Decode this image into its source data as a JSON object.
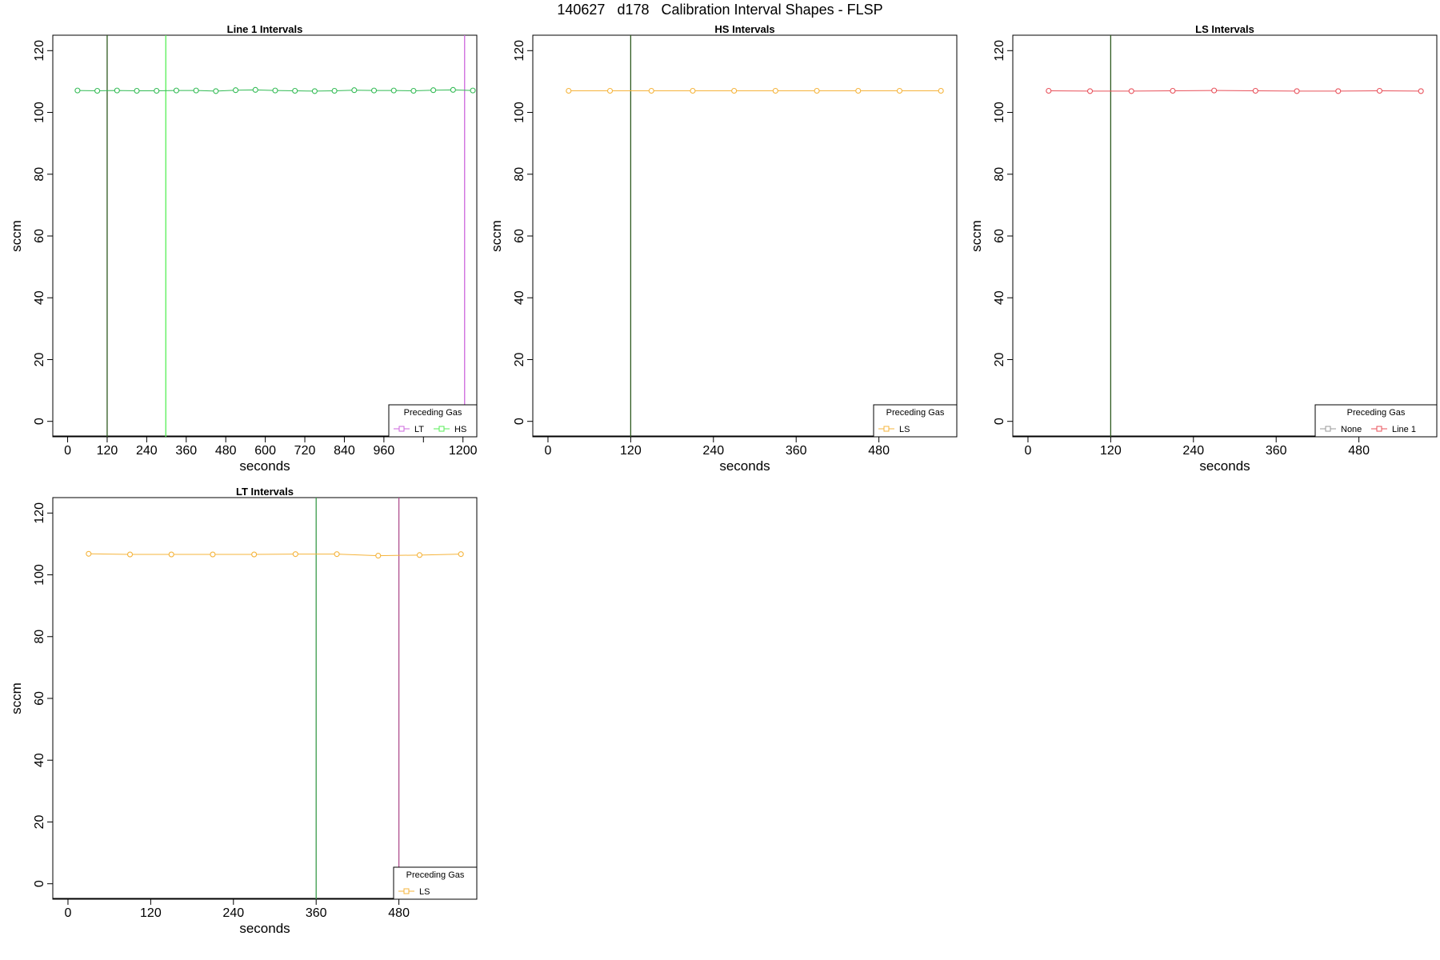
{
  "page": {
    "title": "140627   d178   Calibration Interval Shapes - FLSP"
  },
  "colors": {
    "gray": "#999999",
    "purple": "#cc66dd",
    "green": "#33bb55",
    "bright_green": "#55ee55",
    "orange": "#f5b43c",
    "red": "#e8505a",
    "dark_green": "#2e5a1f",
    "mid_green": "#3a9a4a",
    "magenta": "#b0508f"
  },
  "chart_data": [
    {
      "id": "line1",
      "type": "line",
      "title": "Line 1 Intervals",
      "xlabel": "seconds",
      "ylabel": "sccm",
      "xlim": [
        -45,
        1242
      ],
      "ylim": [
        -5,
        125
      ],
      "x_ticks": [
        0,
        120,
        240,
        360,
        480,
        600,
        720,
        840,
        960,
        1200
      ],
      "x_minor_ticks": [
        1080
      ],
      "y_ticks": [
        0,
        20,
        40,
        60,
        80,
        100,
        120
      ],
      "vlines": [
        {
          "x": 120,
          "color": "#2e5a1f"
        },
        {
          "x": 298,
          "color": "#55ee55"
        },
        {
          "x": 1205,
          "color": "#cc66dd"
        }
      ],
      "series": [
        {
          "color": "#33bb55",
          "x": [
            30,
            90,
            150,
            210,
            270,
            330,
            390,
            450,
            510,
            570,
            630,
            690,
            750,
            810,
            870,
            930,
            990,
            1050,
            1110,
            1170,
            1230
          ],
          "y": [
            107.1,
            107.0,
            107.1,
            107.0,
            107.0,
            107.1,
            107.1,
            106.9,
            107.2,
            107.3,
            107.1,
            107.0,
            106.9,
            107.0,
            107.2,
            107.1,
            107.1,
            107.0,
            107.2,
            107.3,
            107.1
          ]
        }
      ],
      "legend": {
        "title": "Preceding Gas",
        "position": "bottom-right",
        "entries": [
          {
            "label": "LT",
            "color": "#cc66dd"
          },
          {
            "label": "HS",
            "color": "#55ee55"
          }
        ]
      }
    },
    {
      "id": "hs",
      "type": "line",
      "title": "HS Intervals",
      "xlabel": "seconds",
      "ylabel": "sccm",
      "xlim": [
        -22,
        593
      ],
      "ylim": [
        -5,
        125
      ],
      "x_ticks": [
        0,
        120,
        240,
        360,
        480
      ],
      "x_minor_ticks": [],
      "y_ticks": [
        0,
        20,
        40,
        60,
        80,
        100,
        120
      ],
      "vlines": [
        {
          "x": 120,
          "color": "#2e5a1f"
        }
      ],
      "series": [
        {
          "color": "#f5b43c",
          "x": [
            30,
            90,
            150,
            210,
            270,
            330,
            390,
            450,
            510,
            570
          ],
          "y": [
            107.0,
            107.0,
            107.0,
            107.0,
            107.0,
            107.0,
            107.0,
            107.0,
            107.0,
            107.0
          ]
        }
      ],
      "legend": {
        "title": "Preceding Gas",
        "position": "bottom-right",
        "entries": [
          {
            "label": "LS",
            "color": "#f5b43c"
          }
        ]
      }
    },
    {
      "id": "ls",
      "type": "line",
      "title": "LS Intervals",
      "xlabel": "seconds",
      "ylabel": "sccm",
      "xlim": [
        -22,
        593
      ],
      "ylim": [
        -5,
        125
      ],
      "x_ticks": [
        0,
        120,
        240,
        360,
        480
      ],
      "x_minor_ticks": [],
      "y_ticks": [
        0,
        20,
        40,
        60,
        80,
        100,
        120
      ],
      "vlines": [
        {
          "x": 120,
          "color": "#2e5a1f"
        }
      ],
      "series": [
        {
          "color": "#e8505a",
          "x": [
            30,
            90,
            150,
            210,
            270,
            330,
            390,
            450,
            510,
            570
          ],
          "y": [
            107.0,
            106.9,
            106.9,
            107.0,
            107.1,
            107.0,
            106.9,
            106.9,
            107.0,
            106.9
          ]
        }
      ],
      "legend": {
        "title": "Preceding Gas",
        "position": "bottom-right",
        "entries": [
          {
            "label": "None",
            "color": "#999999"
          },
          {
            "label": "Line 1",
            "color": "#e8505a"
          }
        ]
      }
    },
    {
      "id": "lt",
      "type": "line",
      "title": "LT Intervals",
      "xlabel": "seconds",
      "ylabel": "sccm",
      "xlim": [
        -22,
        593
      ],
      "ylim": [
        -5,
        125
      ],
      "x_ticks": [
        0,
        120,
        240,
        360,
        480
      ],
      "x_minor_ticks": [],
      "y_ticks": [
        0,
        20,
        40,
        60,
        80,
        100,
        120
      ],
      "vlines": [
        {
          "x": 360,
          "color": "#3a9a4a"
        },
        {
          "x": 480,
          "color": "#b0508f"
        }
      ],
      "series": [
        {
          "color": "#f5b43c",
          "x": [
            30,
            90,
            150,
            210,
            270,
            330,
            390,
            450,
            510,
            570
          ],
          "y": [
            106.8,
            106.6,
            106.6,
            106.6,
            106.6,
            106.7,
            106.7,
            106.2,
            106.4,
            106.7
          ]
        }
      ],
      "legend": {
        "title": "Preceding Gas",
        "position": "bottom-right",
        "entries": [
          {
            "label": "LS",
            "color": "#f5b43c"
          }
        ]
      }
    }
  ]
}
